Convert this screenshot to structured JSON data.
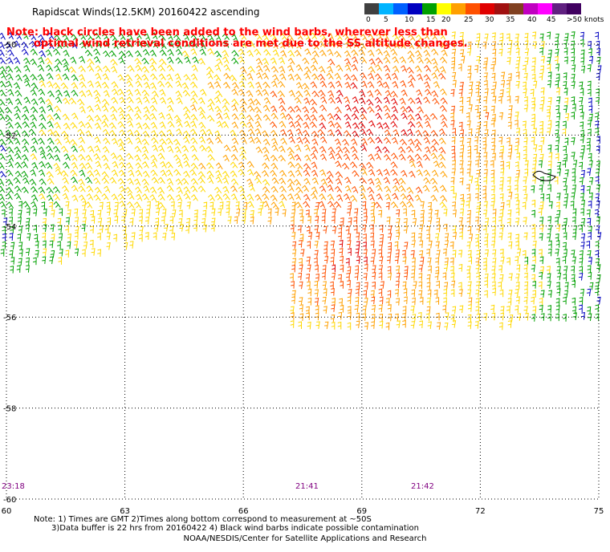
{
  "header": {
    "title": "Rapidscat Winds(12.5KM) 20160422 ascending"
  },
  "note": {
    "line1": "Note: black circles have been added to the wind barbs, wherever less than",
    "line2": "optimal wind retrieval conditions are met due to the SS altitude changes."
  },
  "legend": {
    "colors": [
      "#404040",
      "#00b4ff",
      "#0060ff",
      "#0000c0",
      "#00a000",
      "#ffff00",
      "#ffa000",
      "#ff5000",
      "#e00000",
      "#a01010",
      "#804020",
      "#c000c0",
      "#ff00ff",
      "#602080",
      "#400060"
    ],
    "labels": [
      "0",
      "5",
      "10",
      "15",
      "20",
      "25",
      "30",
      "35",
      "40",
      "45",
      ">50 knots"
    ]
  },
  "axes": {
    "lat_labels": [
      "-50",
      "-52",
      "-54",
      "-56",
      "-58",
      "-60"
    ],
    "lon_labels": [
      "60",
      "63",
      "66",
      "69",
      "72",
      "75"
    ]
  },
  "times": [
    "23:18",
    "21:41",
    "21:42"
  ],
  "footnote": {
    "line1": "Note: 1) Times are GMT 2)Times along bottom correspond to measurement at ~50S",
    "line2": "3)Data buffer is 22 hrs from 20160422 4) Black wind barbs indicate possible contamination"
  },
  "credit": "NOAA/NESDIS/Center for Satellite Applications and Research"
}
